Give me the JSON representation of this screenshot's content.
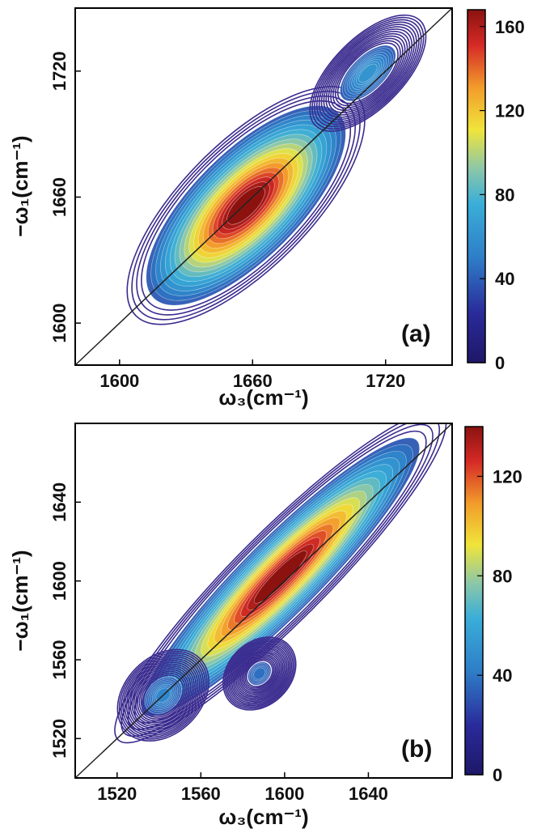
{
  "chart_data": [
    {
      "type": "heatmap",
      "subtype": "contour",
      "panel_label": "(a)",
      "xlabel": "ω₃(cm⁻¹)",
      "ylabel": "−ω₁(cm⁻¹)",
      "xlim": [
        1580,
        1750
      ],
      "ylim": [
        1580,
        1750
      ],
      "x_ticks": [
        1600,
        1660,
        1720
      ],
      "y_ticks": [
        1600,
        1660,
        1720
      ],
      "colorbar": {
        "range": [
          0,
          168
        ],
        "ticks": [
          0,
          40,
          80,
          120,
          160
        ]
      },
      "diagonal_line": true,
      "peaks": [
        {
          "x": 1657,
          "y": 1656,
          "amplitude": 170,
          "note": "main peak, diagonal"
        },
        {
          "x": 1712,
          "y": 1719,
          "amplitude": 62,
          "note": "upper-right diagonal peak"
        }
      ]
    },
    {
      "type": "heatmap",
      "subtype": "contour",
      "panel_label": "(b)",
      "xlabel": "ω₃(cm⁻¹)",
      "ylabel": "−ω₁(cm⁻¹)",
      "xlim": [
        1500,
        1680
      ],
      "ylim": [
        1500,
        1680
      ],
      "x_ticks": [
        1520,
        1560,
        1600,
        1640
      ],
      "y_ticks": [
        1520,
        1560,
        1600,
        1640
      ],
      "colorbar": {
        "range": [
          0,
          140
        ],
        "ticks": [
          0,
          40,
          80,
          120
        ]
      },
      "diagonal_line": true,
      "peaks": [
        {
          "x": 1598,
          "y": 1602,
          "amplitude": 140,
          "note": "main peak, diagonal"
        },
        {
          "x": 1542,
          "y": 1542,
          "amplitude": 45,
          "note": "lower-left diagonal peak"
        },
        {
          "x": 1588,
          "y": 1553,
          "amplitude": 38,
          "note": "below-diagonal cross peak"
        }
      ]
    }
  ]
}
